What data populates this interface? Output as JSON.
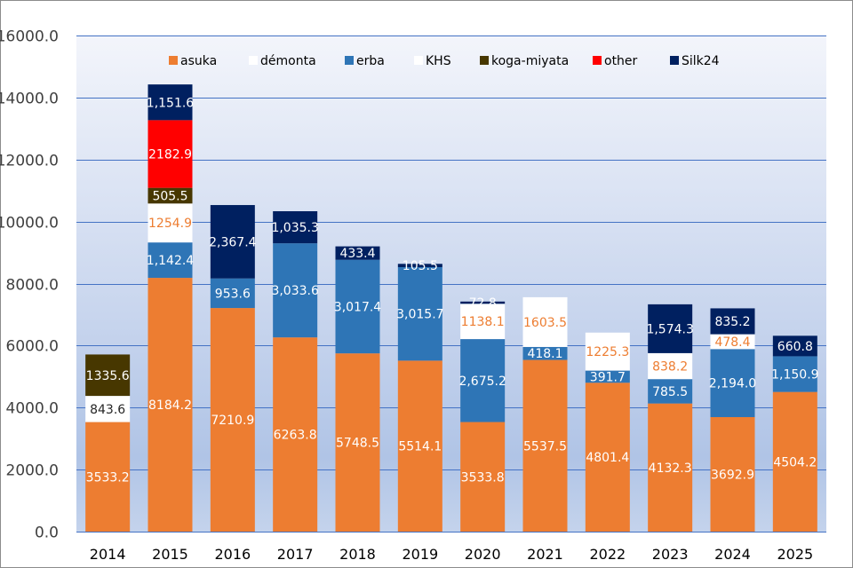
{
  "chart_data": {
    "type": "bar",
    "stacked": true,
    "title": "",
    "xlabel": "",
    "ylabel": "",
    "ylim": [
      0,
      16000
    ],
    "yticks": [
      "0.0",
      "2000.0",
      "4000.0",
      "6000.0",
      "8000.0",
      "10000.0",
      "12000.0",
      "14000.0",
      "16000.0"
    ],
    "ytick_values": [
      0,
      2000,
      4000,
      6000,
      8000,
      10000,
      12000,
      14000,
      16000
    ],
    "grid": true,
    "legend_position": "top",
    "categories": [
      "2014",
      "2015",
      "2016",
      "2017",
      "2018",
      "2019",
      "2020",
      "2021",
      "2022",
      "2023",
      "2024",
      "2025"
    ],
    "series": [
      {
        "name": "asuka",
        "color": "#ed7d31",
        "label_color": "#ffffff",
        "values": [
          3533.2,
          8184.2,
          7210.9,
          6263.8,
          5748.5,
          5514.1,
          3533.8,
          5537.5,
          4801.4,
          4132.3,
          3692.9,
          4504.2
        ],
        "labels": [
          "3533.2",
          "8184.2",
          "7210.9",
          "6263.8",
          "5748.5",
          "5514.1",
          "3533.8",
          "5537.5",
          "4801.4",
          "4132.3",
          "3692.9",
          "4504.2"
        ]
      },
      {
        "name": "démonta",
        "color": "#ffffff",
        "label_color": "#262626",
        "values": [
          843.6,
          0,
          0,
          0,
          0,
          0,
          0,
          0,
          0,
          0,
          0,
          0
        ],
        "labels": [
          "843.6",
          "",
          "",
          "",
          "",
          "",
          "",
          "",
          "",
          "",
          "",
          ""
        ]
      },
      {
        "name": "erba",
        "color": "#2e75b6",
        "label_color": "#ffffff",
        "values": [
          0,
          1142.4,
          953.6,
          3033.6,
          3017.4,
          3015.7,
          2675.2,
          418.1,
          391.7,
          785.5,
          2194.0,
          1150.9
        ],
        "labels": [
          "",
          "1,142.4",
          "953.6",
          "3,033.6",
          "3,017.4",
          "3,015.7",
          "2,675.2",
          "418.1",
          "391.7",
          "785.5",
          "2,194.0",
          "1,150.9"
        ]
      },
      {
        "name": "KHS",
        "color": "#ffffff",
        "label_color": "#ed7d31",
        "values": [
          0,
          1254.9,
          0,
          0,
          0,
          0,
          1138.1,
          1603.5,
          1225.3,
          838.2,
          478.4,
          0
        ],
        "labels": [
          "",
          "1254.9",
          "",
          "",
          "",
          "",
          "1138.1",
          "1603.5",
          "1225.3",
          "838.2",
          "478.4",
          ""
        ]
      },
      {
        "name": "koga-miyata",
        "color": "#473700",
        "label_color": "#ffffff",
        "values": [
          1335.6,
          505.5,
          0,
          0,
          0,
          0,
          0,
          0,
          0,
          0,
          0,
          0
        ],
        "labels": [
          "1335.6",
          "505.5",
          "",
          "",
          "",
          "",
          "",
          "",
          "",
          "",
          "",
          ""
        ]
      },
      {
        "name": "other",
        "color": "#ff0000",
        "label_color": "#ffffff",
        "values": [
          0,
          2182.9,
          0,
          0,
          0,
          0,
          0,
          0,
          0,
          0,
          0,
          0
        ],
        "labels": [
          "",
          "2182.9",
          "",
          "",
          "",
          "",
          "",
          "",
          "",
          "",
          "",
          ""
        ]
      },
      {
        "name": "Silk24",
        "color": "#002060",
        "label_color": "#ffffff",
        "values": [
          0,
          1151.6,
          2367.4,
          1035.3,
          433.4,
          105.5,
          72.8,
          0,
          0,
          1574.3,
          835.2,
          660.8
        ],
        "labels": [
          "",
          "1,151.6",
          "2,367.4",
          "1,035.3",
          "433.4",
          "105.5",
          "72.8",
          "",
          "",
          "1,574.3",
          "835.2",
          "660.8"
        ]
      }
    ]
  }
}
